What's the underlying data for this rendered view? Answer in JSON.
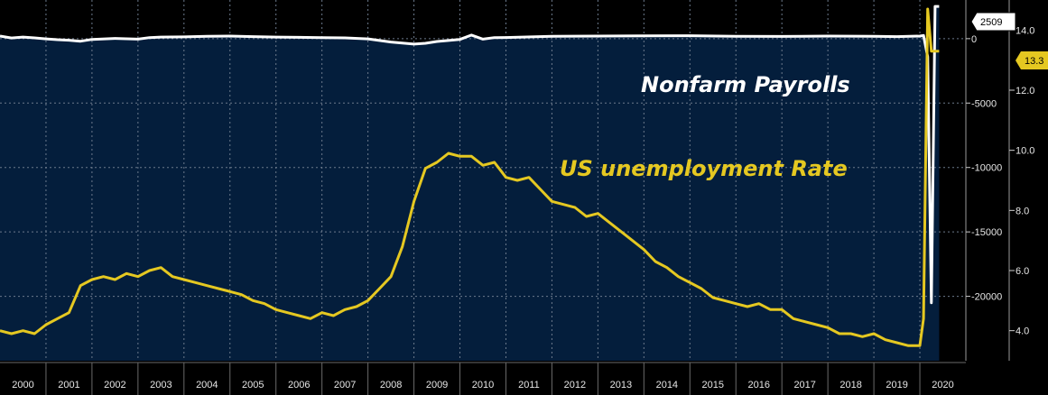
{
  "chart_data": {
    "type": "line",
    "colors": {
      "background": "#000000",
      "plot_area": "#041e3c",
      "grid": "#6c7a8c",
      "payrolls": "#ffffff",
      "unemployment": "#e5c821"
    },
    "grid": true,
    "x_axis": {
      "range": [
        2000.0,
        2021.0
      ],
      "tick_labels": [
        "2000",
        "2001",
        "2002",
        "2003",
        "2004",
        "2005",
        "2006",
        "2007",
        "2008",
        "2009",
        "2010",
        "2011",
        "2012",
        "2013",
        "2014",
        "2015",
        "2016",
        "2017",
        "2018",
        "2019",
        "2020"
      ]
    },
    "y_axis_left": {
      "series": "Nonfarm Payrolls",
      "range": [
        -25000,
        3000
      ],
      "ticks": [
        0,
        -5000,
        -10000,
        -15000,
        -20000
      ],
      "tick_labels": [
        "0",
        "-5000",
        "-10000",
        "-15000",
        "-20000"
      ]
    },
    "y_axis_right": {
      "series": "US unemployment Rate",
      "range": [
        3.0,
        15.0
      ],
      "ticks": [
        14.0,
        12.0,
        10.0,
        8.0,
        6.0,
        4.0
      ],
      "tick_labels": [
        "14.0",
        "12.0",
        "10.0",
        "8.0",
        "6.0",
        "4.0"
      ]
    },
    "annotations": {
      "payrolls_label": "Nonfarm Payrolls",
      "unemployment_label": "US unemployment Rate"
    },
    "last_values": {
      "payrolls": "2509",
      "unemployment": "13.3"
    },
    "series": [
      {
        "name": "Nonfarm Payrolls",
        "axis": "left",
        "color": "#ffffff",
        "x": [
          2000.0,
          2000.25,
          2000.5,
          2000.75,
          2001.0,
          2001.25,
          2001.5,
          2001.75,
          2002.0,
          2002.5,
          2003.0,
          2003.25,
          2003.5,
          2004.0,
          2004.5,
          2005.0,
          2005.5,
          2006.0,
          2006.5,
          2007.0,
          2007.5,
          2008.0,
          2008.25,
          2008.5,
          2008.75,
          2009.0,
          2009.25,
          2009.5,
          2009.75,
          2010.0,
          2010.25,
          2010.5,
          2010.75,
          2011.0,
          2012.0,
          2013.0,
          2014.0,
          2015.0,
          2016.0,
          2017.0,
          2018.0,
          2019.0,
          2019.5,
          2020.0,
          2020.08,
          2020.17,
          2020.25,
          2020.33,
          2020.42
        ],
        "y": [
          200,
          50,
          120,
          60,
          -20,
          -80,
          -120,
          -200,
          -60,
          20,
          -40,
          80,
          120,
          140,
          180,
          200,
          160,
          120,
          100,
          80,
          60,
          -20,
          -140,
          -260,
          -340,
          -420,
          -360,
          -220,
          -140,
          -60,
          280,
          -40,
          80,
          90,
          180,
          200,
          220,
          230,
          180,
          170,
          200,
          180,
          160,
          200,
          250,
          -1400,
          -20500,
          2500,
          2500
        ]
      },
      {
        "name": "US unemployment Rate",
        "axis": "right",
        "color": "#e5c821",
        "x": [
          2000.0,
          2000.25,
          2000.5,
          2000.75,
          2001.0,
          2001.25,
          2001.5,
          2001.75,
          2002.0,
          2002.25,
          2002.5,
          2002.75,
          2003.0,
          2003.25,
          2003.5,
          2003.75,
          2004.0,
          2004.25,
          2004.5,
          2004.75,
          2005.0,
          2005.25,
          2005.5,
          2005.75,
          2006.0,
          2006.25,
          2006.5,
          2006.75,
          2007.0,
          2007.25,
          2007.5,
          2007.75,
          2008.0,
          2008.25,
          2008.5,
          2008.75,
          2009.0,
          2009.25,
          2009.5,
          2009.75,
          2010.0,
          2010.25,
          2010.5,
          2010.75,
          2011.0,
          2011.25,
          2011.5,
          2011.75,
          2012.0,
          2012.25,
          2012.5,
          2012.75,
          2013.0,
          2013.25,
          2013.5,
          2013.75,
          2014.0,
          2014.25,
          2014.5,
          2014.75,
          2015.0,
          2015.25,
          2015.5,
          2015.75,
          2016.0,
          2016.25,
          2016.5,
          2016.75,
          2017.0,
          2017.25,
          2017.5,
          2017.75,
          2018.0,
          2018.25,
          2018.5,
          2018.75,
          2019.0,
          2019.25,
          2019.5,
          2019.75,
          2020.0,
          2020.08,
          2020.17,
          2020.25,
          2020.33,
          2020.42
        ],
        "y": [
          4.0,
          3.9,
          4.0,
          3.9,
          4.2,
          4.4,
          4.6,
          5.5,
          5.7,
          5.8,
          5.7,
          5.9,
          5.8,
          6.0,
          6.1,
          5.8,
          5.7,
          5.6,
          5.5,
          5.4,
          5.3,
          5.2,
          5.0,
          4.9,
          4.7,
          4.6,
          4.5,
          4.4,
          4.6,
          4.5,
          4.7,
          4.8,
          5.0,
          5.4,
          5.8,
          6.8,
          8.3,
          9.4,
          9.6,
          9.9,
          9.8,
          9.8,
          9.5,
          9.6,
          9.1,
          9.0,
          9.1,
          8.7,
          8.3,
          8.2,
          8.1,
          7.8,
          7.9,
          7.6,
          7.3,
          7.0,
          6.7,
          6.3,
          6.1,
          5.8,
          5.6,
          5.4,
          5.1,
          5.0,
          4.9,
          4.8,
          4.9,
          4.7,
          4.7,
          4.4,
          4.3,
          4.2,
          4.1,
          3.9,
          3.9,
          3.8,
          3.9,
          3.7,
          3.6,
          3.5,
          3.5,
          4.4,
          14.7,
          13.3,
          13.3,
          13.3
        ]
      }
    ]
  }
}
